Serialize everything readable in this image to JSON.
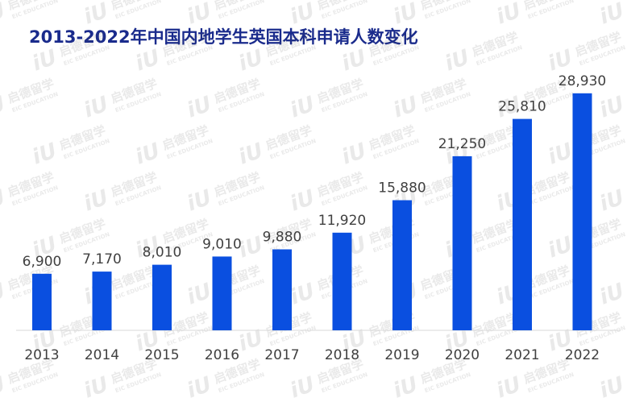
{
  "watermark": {
    "logo_text": "iU",
    "brand_cn": "启德留学",
    "brand_en": "EIC EDUCATION"
  },
  "colors": {
    "title": "#1a2b8c",
    "bar": "#0a4fe0",
    "label": "#404040",
    "axis": "#d9d9d9"
  },
  "chart_data": {
    "type": "bar",
    "title": "2013-2022年中国内地学生英国本科申请人数变化",
    "xlabel": "",
    "ylabel": "",
    "categories": [
      "2013",
      "2014",
      "2015",
      "2016",
      "2017",
      "2018",
      "2019",
      "2020",
      "2021",
      "2022"
    ],
    "values": [
      6900,
      7170,
      8010,
      9010,
      9880,
      11920,
      15880,
      21250,
      25810,
      28930
    ],
    "value_labels": [
      "6,900",
      "7,170",
      "8,010",
      "9,010",
      "9,880",
      "11,920",
      "15,880",
      "21,250",
      "25,810",
      "28,930"
    ],
    "ylim": [
      0,
      29800
    ],
    "grid": false,
    "legend": "none"
  }
}
